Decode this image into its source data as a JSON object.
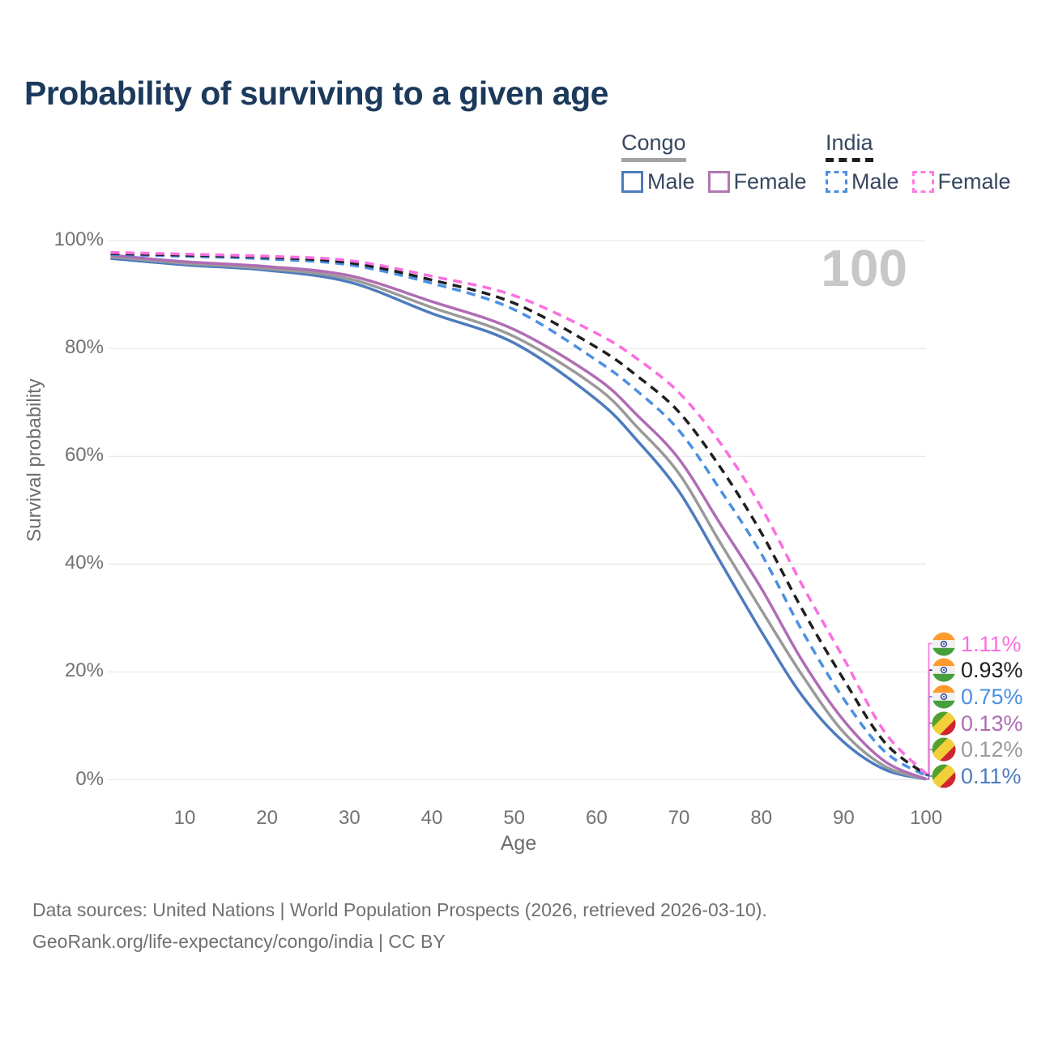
{
  "header": {
    "title": "Probability of surviving to a given age"
  },
  "legend": {
    "groups": [
      {
        "key": "congo",
        "label": "Congo",
        "line_style": "solid",
        "underline_color": "#a3a3a3",
        "items": [
          {
            "key": "congo_male",
            "label": "Male",
            "color": "#4d7cbe",
            "dashed": false
          },
          {
            "key": "congo_female",
            "label": "Female",
            "color": "#b277b3",
            "dashed": false
          }
        ]
      },
      {
        "key": "india",
        "label": "India",
        "line_style": "dashed",
        "underline_color": "#1f1f1f",
        "items": [
          {
            "key": "india_male",
            "label": "Male",
            "color": "#4a90e2",
            "dashed": true
          },
          {
            "key": "india_female",
            "label": "Female",
            "color": "#ff7ae2",
            "dashed": true
          }
        ]
      }
    ]
  },
  "chart_data": {
    "type": "line",
    "title": "Probability of surviving to a given age",
    "xlabel": "Age",
    "ylabel": "Survival probability",
    "xlim": [
      0,
      100
    ],
    "ylim": [
      0,
      100
    ],
    "grid": "horizontal",
    "watermark": "100",
    "x_ticks": [
      "10",
      "20",
      "30",
      "40",
      "50",
      "60",
      "70",
      "80",
      "90",
      "100"
    ],
    "y_ticks": [
      "0%",
      "20%",
      "40%",
      "60%",
      "80%",
      "100%"
    ],
    "ages": [
      1,
      10,
      20,
      30,
      40,
      50,
      60,
      65,
      70,
      75,
      80,
      85,
      90,
      95,
      100
    ],
    "series": [
      {
        "key": "congo_male",
        "name": "Congo Male",
        "country": "Congo",
        "sex": "Male",
        "color": "#4d7cbe",
        "dashed": false,
        "flag": "congo",
        "end_label": "0.11%",
        "values": [
          96.7,
          95.5,
          94.5,
          92.3,
          86.5,
          81.0,
          70.5,
          62.8,
          53.5,
          40.5,
          27.5,
          15.5,
          7.0,
          1.9,
          0.11
        ]
      },
      {
        "key": "congo_both",
        "name": "Congo",
        "country": "Congo",
        "sex": "",
        "color": "#9a9a9a",
        "dashed": false,
        "flag": "congo",
        "end_label": "0.12%",
        "values": [
          97.0,
          95.8,
          94.8,
          92.9,
          87.6,
          82.2,
          72.8,
          65.3,
          56.8,
          44.0,
          31.5,
          19.3,
          8.8,
          2.5,
          0.12
        ]
      },
      {
        "key": "congo_female",
        "name": "Congo Female",
        "country": "Congo",
        "sex": "Female",
        "color": "#b06cb4",
        "dashed": false,
        "flag": "congo",
        "end_label": "0.13%",
        "values": [
          97.3,
          96.1,
          95.2,
          93.5,
          88.7,
          83.5,
          74.5,
          67.5,
          59.5,
          47.5,
          35.5,
          22.0,
          11.0,
          3.4,
          0.13
        ]
      },
      {
        "key": "india_male",
        "name": "India Male",
        "country": "India",
        "sex": "Male",
        "color": "#4a90e2",
        "dashed": true,
        "flag": "india",
        "end_label": "0.75%",
        "values": [
          97.4,
          97.1,
          96.6,
          95.5,
          92.1,
          87.2,
          77.8,
          72.0,
          64.8,
          53.8,
          41.9,
          27.5,
          15.0,
          5.2,
          0.75
        ]
      },
      {
        "key": "india_both",
        "name": "India",
        "country": "India",
        "sex": "",
        "color": "#1f1f1f",
        "dashed": true,
        "flag": "india",
        "end_label": "0.93%",
        "values": [
          97.6,
          97.3,
          96.9,
          95.9,
          92.7,
          88.4,
          80.2,
          74.8,
          68.2,
          58.0,
          45.8,
          31.5,
          18.6,
          6.9,
          0.93
        ]
      },
      {
        "key": "india_female",
        "name": "India Female",
        "country": "India",
        "sex": "Female",
        "color": "#fb6ee0",
        "dashed": true,
        "flag": "india",
        "end_label": "1.11%",
        "values": [
          97.8,
          97.5,
          97.1,
          96.3,
          93.4,
          89.8,
          82.8,
          78.0,
          71.8,
          62.5,
          50.5,
          36.0,
          22.5,
          8.8,
          1.11
        ]
      }
    ]
  },
  "colors": {
    "title": "#1b3a5c",
    "grid": "#e4e4e4",
    "tick_text": "#727272",
    "watermark": "#c7c7c7",
    "legend_text": "#37475f",
    "footer_text": "#707070"
  },
  "footer": {
    "line1": "Data sources: United Nations | World Population Prospects (2026, retrieved 2026-03-10).",
    "line2": "GeoRank.org/life-expectancy/congo/india | CC BY"
  }
}
